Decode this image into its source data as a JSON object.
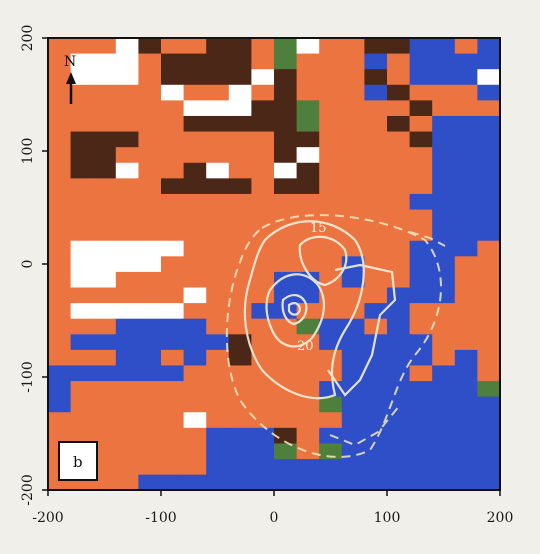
{
  "chart_data": {
    "type": "heatmap",
    "title": "",
    "xlabel": "",
    "ylabel": "",
    "xlim": [
      -200,
      200
    ],
    "ylim": [
      -200,
      200
    ],
    "x_ticks": [
      "-200",
      "-100",
      "0",
      "100",
      "200"
    ],
    "y_ticks": [
      "200",
      "100",
      "0",
      "-100",
      "-200"
    ],
    "grid": false,
    "panel_label": "b",
    "north_label": "N",
    "contour_labels": [
      "15",
      "20"
    ],
    "categories": {
      "O": "#ec7440",
      "B": "#2f4fc8",
      "D": "#4a2716",
      "G": "#4f7f3c",
      "W": "#ffffff"
    },
    "cell_size": 20,
    "rows": [
      "OOOWDOODDOGWOODDBBOBBOOOB",
      "OWWWODDDDOGOOOBOBBBBOBOBB",
      "OWWWODDDDWDOOODOBBBWBBOBD",
      "OOOOOWOOWODOOOBDOOOBOOODD",
      "OOOOOOWWWDDGOOOODOOOOOOOB",
      "OOOOOODDDDDGOOODOBBBBOOOB",
      "ODDDOOOOOODDOOOODBBBBBBOO",
      "ODDOOOOOOODWOOOOOBBBBBBBO",
      "ODDWOODWOOWDOOOOOBBBBBBOO",
      "OOOOODDDDODDOOOOOBBBBBBBB",
      "OOOOOOOOOOOOOOOOBBBBOOBOB",
      "OOOOOOOOOOOOOOOOOBBBOOOOB",
      "OOOOOOOOOOOOOOOOOBBBOGOOO",
      "OWWWWWOOOOOOOOOOBBBOOOOOO",
      "OWWWWOOOOOOOOBOOBBOOOOGOO",
      "OWWOOOOOOOBBOBOOBBOOOOOOO",
      "OOOOOOWOOOBBOOOBBBOOOOOOO",
      "OWWWWWOOOBBOOOBBOOOOOOOOO",
      "OOOBBBBOOOOGBBOBOOOOOOOOO",
      "OBBBBBBBDOOOBBBBBOOOOOOOO",
      "OOOBBOBODOOOOBBBBOBOOOOOO",
      "BBBBBBOOOOOOOBBBOBBOOOOOO",
      "BOOOOOOOOOOOBBBBBBBGOOOOO",
      "BOOOOOOOOOOOGBBBBBBBGOOOO",
      "OOOOOOWOOOOOOBBBBBBBBBOOO",
      "OOOOOOOBBBDOBBBBBBBBBBBBO",
      "OOOOOOOBBBGOGBBBBBBBBBOOB",
      "OOOOOOOBBBBBBBBBBBBBBBBOO",
      "OOOOBBBBBBBBBBBBBBBBBBBOO"
    ]
  }
}
